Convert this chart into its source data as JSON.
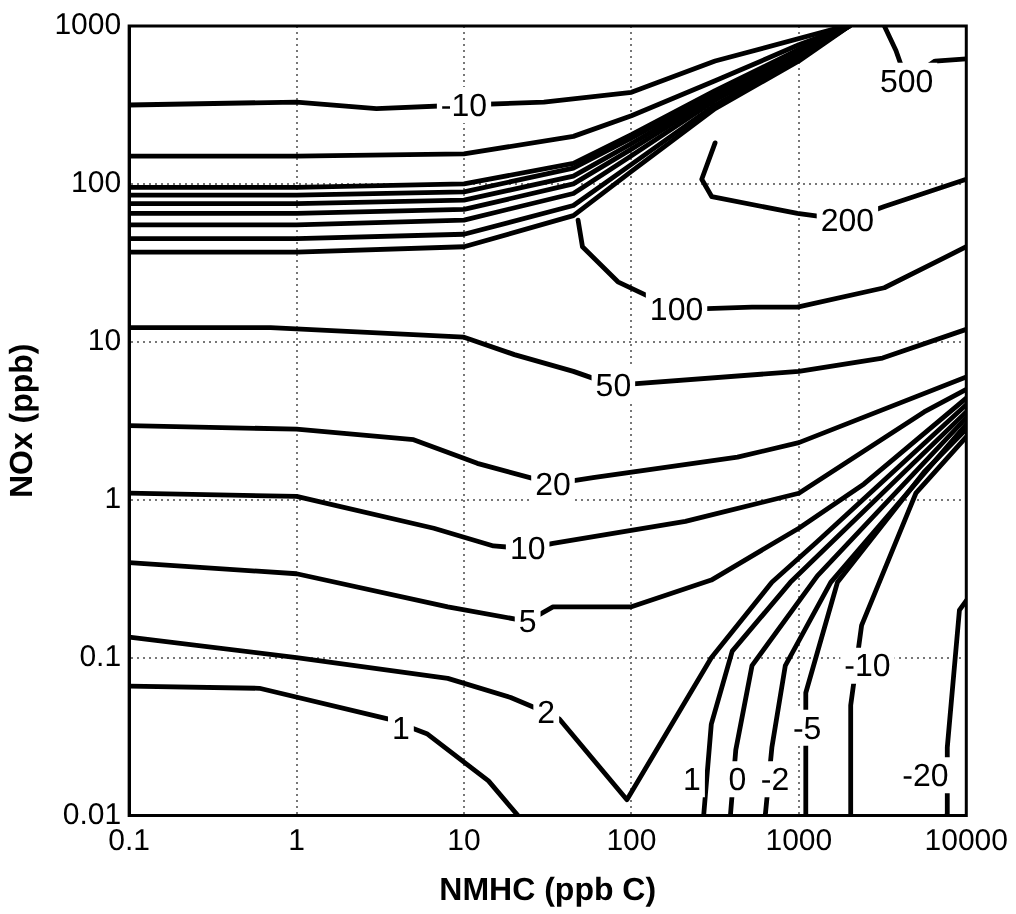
{
  "chart_data": {
    "type": "line",
    "xlabel": "NMHC (ppb C)",
    "ylabel": "NOx (ppb)",
    "log": "xy",
    "grid": true,
    "marker": "none",
    "legend": false,
    "xlim": [
      0.1,
      10000
    ],
    "xticks": [
      0.1,
      1,
      10,
      100,
      1000,
      10000
    ],
    "ylim": [
      0.01,
      1000
    ],
    "yticks": [
      0.01,
      0.1,
      1,
      10,
      100,
      1000
    ],
    "series": [
      {
        "color": "#000000",
        "x": [
          0.1,
          1,
          3,
          10,
          30,
          100,
          316,
          1900
        ],
        "values": [
          316,
          330,
          300,
          316,
          330,
          380,
          600,
          1000
        ]
      },
      {
        "color": "#000000",
        "x": [
          0.1,
          1,
          10,
          45,
          100,
          316,
          1000,
          2000
        ],
        "values": [
          150,
          150,
          155,
          200,
          270,
          450,
          760,
          1000
        ]
      },
      {
        "color": "#000000",
        "x": [
          0.1,
          1,
          10,
          45,
          100,
          316,
          1000,
          2000
        ],
        "values": [
          95,
          95,
          100,
          135,
          205,
          390,
          710,
          1000
        ]
      },
      {
        "color": "#000000",
        "x": [
          0.1,
          1,
          10,
          45,
          100,
          316,
          1000,
          2000
        ],
        "values": [
          85,
          85,
          89,
          126,
          195,
          380,
          690,
          1000
        ]
      },
      {
        "color": "#000000",
        "x": [
          0.1,
          1,
          10,
          45,
          100,
          316,
          1000,
          2000
        ],
        "values": [
          75,
          75,
          79,
          112,
          180,
          367,
          676,
          1000
        ]
      },
      {
        "color": "#000000",
        "x": [
          0.1,
          1,
          10,
          45,
          100,
          316,
          1000,
          2000
        ],
        "values": [
          65,
          65,
          69,
          100,
          166,
          355,
          660,
          1000
        ]
      },
      {
        "color": "#000000",
        "x": [
          0.1,
          1,
          10,
          45,
          100,
          316,
          1000,
          2000
        ],
        "values": [
          55,
          55,
          59,
          87,
          151,
          339,
          645,
          1000
        ]
      },
      {
        "color": "#000000",
        "x": [
          0.1,
          1,
          10,
          45,
          100,
          316,
          1000,
          2000
        ],
        "values": [
          45,
          45,
          48,
          73,
          133,
          316,
          617,
          1000
        ]
      },
      {
        "color": "#000000",
        "x": [
          0.1,
          1,
          10,
          45,
          100,
          316,
          1000,
          2000
        ],
        "values": [
          37,
          37,
          40,
          63,
          120,
          300,
          600,
          1000
        ]
      },
      {
        "color": "#000000",
        "x": [
          3240,
          3800,
          4400,
          6500,
          10000
        ],
        "values": [
          1000,
          700,
          450,
          600,
          620
        ]
      },
      {
        "color": "#000000",
        "x": [
          316,
          263,
          302,
          980,
          1950,
          3240,
          10000
        ],
        "values": [
          182,
          107,
          83,
          65,
          59,
          72,
          107
        ]
      },
      {
        "color": "#000000",
        "x": [
          48,
          51,
          83,
          186,
          525,
          980,
          3240,
          10000
        ],
        "values": [
          59,
          40,
          24,
          16,
          16.6,
          16.6,
          22,
          40
        ]
      },
      {
        "color": "#000000",
        "x": [
          0.1,
          0.7,
          10,
          20,
          45,
          78,
          1000,
          3160,
          10000
        ],
        "values": [
          12.3,
          12.3,
          10.7,
          8.3,
          6.5,
          5.3,
          6.5,
          7.9,
          12
        ]
      },
      {
        "color": "#000000",
        "x": [
          0.1,
          1,
          5,
          12,
          34,
          59,
          430,
          1000,
          10000
        ],
        "values": [
          2.95,
          2.8,
          2.4,
          1.7,
          1.26,
          1.38,
          1.86,
          2.3,
          6
        ]
      },
      {
        "color": "#000000",
        "x": [
          0.1,
          1,
          6.6,
          15,
          24,
          34,
          210,
          1000,
          5600,
          10000
        ],
        "values": [
          1.1,
          1.05,
          0.66,
          0.51,
          0.49,
          0.53,
          0.73,
          1.1,
          3.6,
          5
        ]
      },
      {
        "color": "#000000",
        "x": [
          0.1,
          1,
          8,
          24,
          34,
          100,
          300,
          1000,
          2450,
          10000
        ],
        "values": [
          0.4,
          0.34,
          0.21,
          0.17,
          0.21,
          0.21,
          0.31,
          0.66,
          1.26,
          4.4
        ]
      },
      {
        "color": "#000000",
        "x": [
          0.1,
          1,
          8,
          19,
          31,
          37,
          94,
          300,
          690,
          1280,
          10000
        ],
        "values": [
          0.135,
          0.1,
          0.074,
          0.056,
          0.045,
          0.041,
          0.0126,
          0.1,
          0.3,
          0.54,
          4
        ]
      },
      {
        "color": "#000000",
        "x": [
          0.1,
          0.6,
          3.5,
          6,
          14,
          21
        ],
        "values": [
          0.066,
          0.064,
          0.041,
          0.033,
          0.0166,
          0.01
        ]
      },
      {
        "color": "#000000",
        "x": [
          270,
          300,
          400,
          890,
          10000
        ],
        "values": [
          0.01,
          0.038,
          0.11,
          0.3,
          3.6
        ]
      },
      {
        "color": "#000000",
        "x": [
          390,
          420,
          525,
          1290,
          10000
        ],
        "values": [
          0.01,
          0.026,
          0.089,
          0.33,
          3.3
        ]
      },
      {
        "color": "#000000",
        "x": [
          630,
          690,
          830,
          1550,
          10000
        ],
        "values": [
          0.01,
          0.027,
          0.089,
          0.3,
          3
        ]
      },
      {
        "color": "#000000",
        "x": [
          1100,
          1100,
          1700,
          5600,
          10000
        ],
        "values": [
          0.01,
          0.06,
          0.3,
          1.5,
          2.8
        ]
      },
      {
        "color": "#000000",
        "x": [
          2040,
          2040,
          2370,
          5000,
          10000
        ],
        "values": [
          0.01,
          0.05,
          0.16,
          1.1,
          2.5
        ]
      },
      {
        "color": "#000000",
        "x": [
          7600,
          7700,
          9100,
          10000
        ],
        "values": [
          0.01,
          0.027,
          0.2,
          0.23
        ]
      }
    ],
    "annotations": [
      {
        "text": "-10",
        "x": 10,
        "y": 316
      },
      {
        "text": "500",
        "x": 4400,
        "y": 450
      },
      {
        "text": "200",
        "x": 1950,
        "y": 59
      },
      {
        "text": "100",
        "x": 186,
        "y": 16
      },
      {
        "text": "50",
        "x": 78,
        "y": 5.3
      },
      {
        "text": "20",
        "x": 34,
        "y": 1.26
      },
      {
        "text": "10",
        "x": 24,
        "y": 0.49
      },
      {
        "text": "5",
        "x": 24,
        "y": 0.17
      },
      {
        "text": "2",
        "x": 31,
        "y": 0.045
      },
      {
        "text": "1",
        "x": 4.2,
        "y": 0.036
      },
      {
        "text": "1",
        "x": 230,
        "y": 0.017
      },
      {
        "text": "0",
        "x": 430,
        "y": 0.017
      },
      {
        "text": "-2",
        "x": 720,
        "y": 0.017
      },
      {
        "text": "-5",
        "x": 1120,
        "y": 0.036
      },
      {
        "text": "-10",
        "x": 2570,
        "y": 0.089
      },
      {
        "text": "-20",
        "x": 5700,
        "y": 0.018
      }
    ]
  }
}
